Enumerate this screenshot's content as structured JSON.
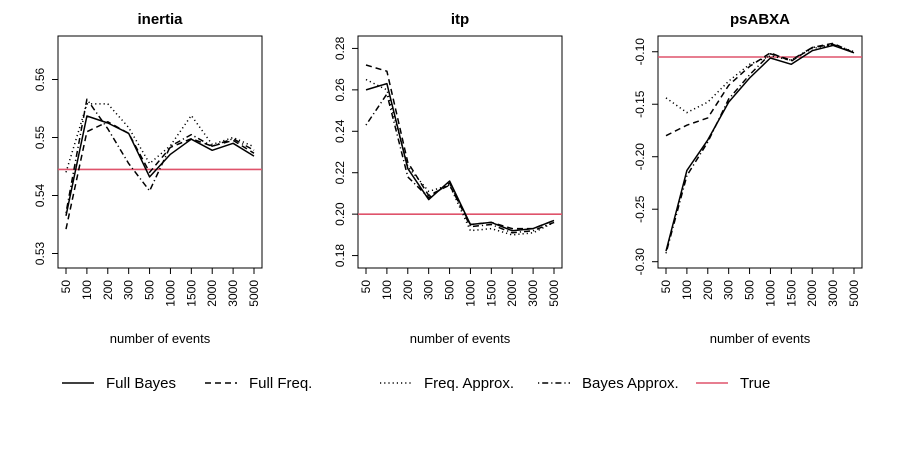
{
  "chart_data": [
    {
      "type": "line",
      "title": "inertia",
      "xlabel": "number of events",
      "ylabel": "",
      "categories": [
        "50",
        "100",
        "200",
        "300",
        "500",
        "1000",
        "1500",
        "2000",
        "3000",
        "5000"
      ],
      "ylim": [
        0.5275,
        0.5675
      ],
      "yticks": [
        0.53,
        0.54,
        0.55,
        0.56
      ],
      "ytick_labels": [
        "0.53",
        "0.54",
        "0.55",
        "0.56"
      ],
      "true_value": 0.5445,
      "series": [
        {
          "name": "Full Bayes",
          "style": "solid",
          "values": [
            0.5365,
            0.5537,
            0.5525,
            0.5507,
            0.5432,
            0.5471,
            0.5497,
            0.5478,
            0.549,
            0.5468
          ]
        },
        {
          "name": "Full Freq.",
          "style": "dashed",
          "values": [
            0.5342,
            0.551,
            0.5527,
            0.5507,
            0.544,
            0.5483,
            0.5498,
            0.5485,
            0.5495,
            0.5473
          ]
        },
        {
          "name": "Freq. Approx.",
          "style": "dotted",
          "values": [
            0.544,
            0.5558,
            0.5558,
            0.5517,
            0.5455,
            0.5486,
            0.5538,
            0.5488,
            0.55,
            0.5484
          ]
        },
        {
          "name": "Bayes Approx.",
          "style": "dashdot",
          "values": [
            0.537,
            0.5566,
            0.5515,
            0.5455,
            0.5408,
            0.5485,
            0.5505,
            0.5485,
            0.5498,
            0.5478
          ]
        }
      ]
    },
    {
      "type": "line",
      "title": "itp",
      "xlabel": "number of events",
      "ylabel": "",
      "categories": [
        "50",
        "100",
        "200",
        "300",
        "500",
        "1000",
        "1500",
        "2000",
        "3000",
        "5000"
      ],
      "ylim": [
        0.174,
        0.286
      ],
      "yticks": [
        0.18,
        0.2,
        0.22,
        0.24,
        0.26,
        0.28
      ],
      "ytick_labels": [
        "0.18",
        "0.20",
        "0.22",
        "0.24",
        "0.26",
        "0.28"
      ],
      "true_value": 0.2,
      "series": [
        {
          "name": "Full Bayes",
          "style": "solid",
          "values": [
            0.26,
            0.263,
            0.222,
            0.207,
            0.216,
            0.195,
            0.196,
            0.192,
            0.193,
            0.197
          ]
        },
        {
          "name": "Full Freq.",
          "style": "dashed",
          "values": [
            0.272,
            0.269,
            0.225,
            0.209,
            0.214,
            0.195,
            0.196,
            0.193,
            0.193,
            0.197
          ]
        },
        {
          "name": "Freq. Approx.",
          "style": "dotted",
          "values": [
            0.265,
            0.26,
            0.223,
            0.211,
            0.214,
            0.192,
            0.193,
            0.19,
            0.191,
            0.196
          ]
        },
        {
          "name": "Bayes Approx.",
          "style": "dashdot",
          "values": [
            0.243,
            0.258,
            0.218,
            0.208,
            0.215,
            0.194,
            0.195,
            0.191,
            0.192,
            0.196
          ]
        }
      ]
    },
    {
      "type": "line",
      "title": "psABXA",
      "xlabel": "number of events",
      "ylabel": "",
      "categories": [
        "50",
        "100",
        "200",
        "300",
        "500",
        "1000",
        "1500",
        "2000",
        "3000",
        "5000"
      ],
      "ylim": [
        -0.306,
        -0.085
      ],
      "yticks": [
        -0.3,
        -0.25,
        -0.2,
        -0.15,
        -0.1
      ],
      "ytick_labels": [
        "-0.30",
        "-0.25",
        "-0.20",
        "-0.15",
        "-0.10"
      ],
      "true_value": -0.105,
      "series": [
        {
          "name": "Full Bayes",
          "style": "solid",
          "values": [
            -0.29,
            -0.213,
            -0.184,
            -0.148,
            -0.125,
            -0.106,
            -0.112,
            -0.099,
            -0.094,
            -0.101
          ]
        },
        {
          "name": "Full Freq.",
          "style": "dashed",
          "values": [
            -0.18,
            -0.17,
            -0.163,
            -0.132,
            -0.114,
            -0.101,
            -0.109,
            -0.096,
            -0.092,
            -0.101
          ]
        },
        {
          "name": "Freq. Approx.",
          "style": "dotted",
          "values": [
            -0.144,
            -0.158,
            -0.148,
            -0.128,
            -0.112,
            -0.104,
            -0.108,
            -0.097,
            -0.093,
            -0.1
          ]
        },
        {
          "name": "Bayes Approx.",
          "style": "dashdot",
          "values": [
            -0.292,
            -0.218,
            -0.186,
            -0.145,
            -0.122,
            -0.102,
            -0.108,
            -0.096,
            -0.093,
            -0.101
          ]
        }
      ]
    }
  ],
  "legend": {
    "placement": "bottom",
    "entries": [
      {
        "label": "Full Bayes",
        "style": "solid",
        "color": "#000000"
      },
      {
        "label": "Full Freq.",
        "style": "dashed",
        "color": "#000000"
      },
      {
        "label": "Freq. Approx.",
        "style": "dotted",
        "color": "#000000"
      },
      {
        "label": "Bayes Approx.",
        "style": "dashdot",
        "color": "#000000"
      },
      {
        "label": "True",
        "style": "solid",
        "color": "#df536b"
      }
    ]
  },
  "colors": {
    "series": "#000000",
    "true_line": "#df536b"
  }
}
